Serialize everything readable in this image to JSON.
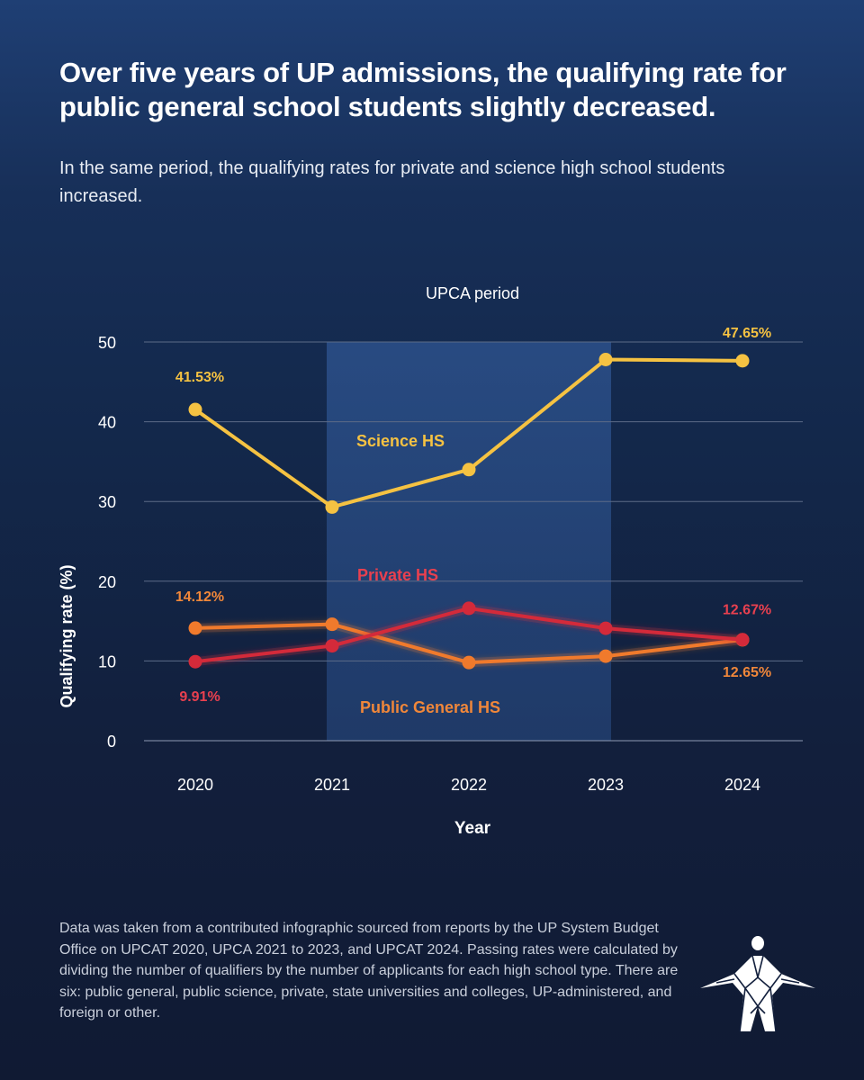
{
  "header": {
    "title": "Over five years of UP admissions, the qualifying rate for public general school students slightly decreased.",
    "subtitle": "In the same period, the qualifying rates for private and science high school students increased."
  },
  "chart_data": {
    "type": "line",
    "title": "",
    "xlabel": "Year",
    "ylabel": "Qualifying rate (%)",
    "categories": [
      "2020",
      "2021",
      "2022",
      "2023",
      "2024"
    ],
    "ylim": [
      0,
      50
    ],
    "yticks": [
      0,
      10,
      20,
      30,
      40,
      50
    ],
    "grid": true,
    "shaded_region": {
      "label": "UPCA period",
      "from": "2021",
      "to": "2023"
    },
    "series": [
      {
        "name": "Science HS",
        "color": "#f5c242",
        "values": [
          41.53,
          29.3,
          34.0,
          47.8,
          47.65
        ]
      },
      {
        "name": "Private HS",
        "color": "#d42a3a",
        "values": [
          9.91,
          11.9,
          16.6,
          14.1,
          12.67
        ]
      },
      {
        "name": "Public General HS",
        "color": "#f07a2c",
        "values": [
          14.12,
          14.6,
          9.8,
          10.6,
          12.65
        ]
      }
    ],
    "data_labels": [
      {
        "series": "Science HS",
        "year": "2020",
        "text": "41.53%"
      },
      {
        "series": "Science HS",
        "year": "2024",
        "text": "47.65%"
      },
      {
        "series": "Public General HS",
        "year": "2020",
        "text": "14.12%"
      },
      {
        "series": "Private HS",
        "year": "2020",
        "text": "9.91%"
      },
      {
        "series": "Private HS",
        "year": "2024",
        "text": "12.67%"
      },
      {
        "series": "Public General HS",
        "year": "2024",
        "text": "12.65%"
      }
    ],
    "series_label_colors": {
      "Science HS": "#f5c242",
      "Private HS": "#e8404f",
      "Public General HS": "#f0873a"
    }
  },
  "footer": {
    "note": "Data was taken from a contributed infographic sourced from reports by the UP System Budget Office on UPCAT 2020, UPCA 2021 to 2023, and UPCAT 2024. Passing rates were calculated by dividing the number of qualifiers by the number of applicants for each high school type. There are six: public general, public science, private, state universities and colleges, UP-administered, and foreign or other."
  },
  "logo": {
    "icon": "oblation-statue-icon"
  }
}
